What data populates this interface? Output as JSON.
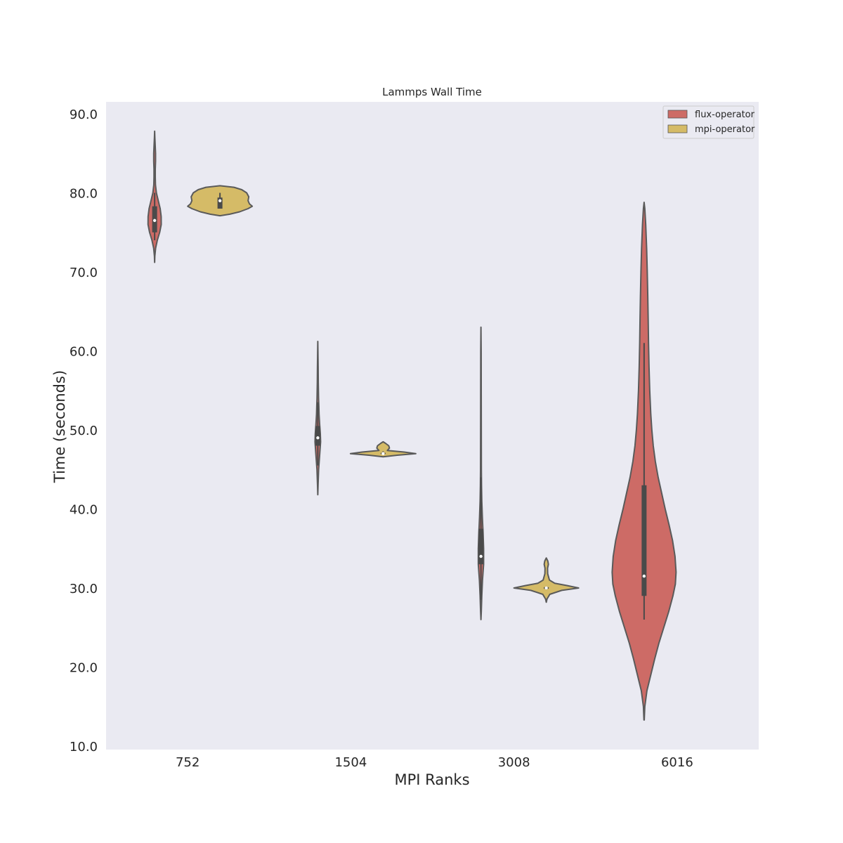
{
  "chart_data": {
    "type": "violin",
    "title": "Lammps Wall Time",
    "xlabel": "MPI Ranks",
    "ylabel": "Time (seconds)",
    "categories": [
      "752",
      "1504",
      "3008",
      "6016"
    ],
    "ylim": [
      10.0,
      91.5
    ],
    "yticks": [
      "10.0",
      "20.0",
      "30.0",
      "40.0",
      "50.0",
      "60.0",
      "70.0",
      "80.0",
      "90.0"
    ],
    "grid": false,
    "legend_position": "top-right",
    "background": "#EAEAF2",
    "series": [
      {
        "name": "flux-operator",
        "color": "#CD6B66",
        "distributions": [
          {
            "category": "752",
            "median": 76.5,
            "q1": 75.0,
            "q3": 78.3,
            "whisker_low": 74.0,
            "whisker_high": 80.0,
            "profile": [
              [
                71.2,
                0.0
              ],
              [
                72.0,
                0.3
              ],
              [
                73.0,
                1.4
              ],
              [
                74.0,
                3.8
              ],
              [
                75.0,
                7.2
              ],
              [
                76.0,
                9.4
              ],
              [
                77.0,
                9.3
              ],
              [
                78.0,
                7.9
              ],
              [
                79.0,
                5.2
              ],
              [
                80.0,
                2.5
              ],
              [
                81.0,
                1.2
              ],
              [
                82.0,
                0.9
              ],
              [
                83.0,
                0.9
              ],
              [
                84.0,
                1.3
              ],
              [
                85.0,
                1.3
              ],
              [
                86.0,
                0.8
              ],
              [
                87.0,
                0.3
              ],
              [
                87.8,
                0.0
              ]
            ]
          },
          {
            "category": "1504",
            "median": 49.0,
            "q1": 48.0,
            "q3": 50.5,
            "whisker_low": 45.5,
            "whisker_high": 53.5,
            "profile": [
              [
                41.8,
                0.0
              ],
              [
                43.0,
                0.4
              ],
              [
                45.0,
                1.2
              ],
              [
                47.0,
                2.8
              ],
              [
                48.5,
                4.0
              ],
              [
                49.5,
                3.6
              ],
              [
                50.5,
                2.8
              ],
              [
                52.0,
                1.8
              ],
              [
                53.0,
                1.5
              ],
              [
                54.0,
                1.1
              ],
              [
                56.0,
                0.7
              ],
              [
                58.0,
                0.5
              ],
              [
                61.2,
                0.0
              ]
            ]
          },
          {
            "category": "3008",
            "median": 34.0,
            "q1": 33.0,
            "q3": 37.5,
            "whisker_low": 28.5,
            "whisker_high": 44.0,
            "profile": [
              [
                26.0,
                0.0
              ],
              [
                27.0,
                0.5
              ],
              [
                29.0,
                1.2
              ],
              [
                31.0,
                2.2
              ],
              [
                33.0,
                3.8
              ],
              [
                35.0,
                3.8
              ],
              [
                37.0,
                3.0
              ],
              [
                39.0,
                2.0
              ],
              [
                41.0,
                1.2
              ],
              [
                43.0,
                0.8
              ],
              [
                45.0,
                0.6
              ],
              [
                50.0,
                0.5
              ],
              [
                55.0,
                0.4
              ],
              [
                60.0,
                0.3
              ],
              [
                63.0,
                0.0
              ]
            ]
          },
          {
            "category": "6016",
            "median": 31.5,
            "q1": 29.0,
            "q3": 43.0,
            "whisker_low": 26.0,
            "whisker_high": 61.0,
            "profile": [
              [
                13.3,
                0.2
              ],
              [
                15.0,
                1.0
              ],
              [
                17.0,
                4.0
              ],
              [
                19.0,
                9.5
              ],
              [
                21.0,
                15.0
              ],
              [
                23.0,
                21.0
              ],
              [
                25.0,
                28.0
              ],
              [
                27.0,
                35.0
              ],
              [
                29.0,
                41.0
              ],
              [
                30.5,
                44.5
              ],
              [
                32.0,
                45.5
              ],
              [
                34.0,
                44.0
              ],
              [
                36.0,
                40.5
              ],
              [
                38.0,
                35.5
              ],
              [
                40.0,
                30.0
              ],
              [
                42.0,
                25.0
              ],
              [
                44.0,
                20.0
              ],
              [
                46.0,
                16.0
              ],
              [
                48.0,
                13.0
              ],
              [
                50.0,
                11.0
              ],
              [
                52.0,
                9.5
              ],
              [
                55.0,
                8.0
              ],
              [
                58.0,
                7.0
              ],
              [
                61.0,
                6.3
              ],
              [
                64.0,
                5.8
              ],
              [
                67.0,
                5.2
              ],
              [
                70.0,
                4.5
              ],
              [
                73.0,
                3.6
              ],
              [
                76.0,
                2.3
              ],
              [
                78.0,
                1.0
              ],
              [
                78.8,
                0.0
              ]
            ]
          }
        ]
      },
      {
        "name": "mpi-operator",
        "color": "#D5BB67",
        "distributions": [
          {
            "category": "752",
            "median": 79.0,
            "q1": 78.0,
            "q3": 79.4,
            "whisker_low": 78.0,
            "whisker_high": 80.0,
            "profile": [
              [
                77.1,
                0.0
              ],
              [
                77.3,
                14.0
              ],
              [
                77.6,
                28.0
              ],
              [
                78.0,
                40.0
              ],
              [
                78.3,
                46.0
              ],
              [
                78.6,
                42.0
              ],
              [
                79.0,
                40.0
              ],
              [
                79.5,
                41.0
              ],
              [
                80.0,
                38.0
              ],
              [
                80.4,
                31.0
              ],
              [
                80.7,
                20.0
              ],
              [
                80.9,
                0.0
              ]
            ]
          },
          {
            "category": "1504",
            "median": 47.0,
            "q1": 46.95,
            "q3": 47.1,
            "whisker_low": 46.9,
            "whisker_high": 47.3,
            "profile": [
              [
                46.6,
                0.0
              ],
              [
                46.8,
                20.0
              ],
              [
                47.0,
                46.5
              ],
              [
                47.2,
                30.0
              ],
              [
                47.4,
                6.0
              ],
              [
                47.7,
                9.0
              ],
              [
                48.0,
                8.0
              ],
              [
                48.3,
                3.5
              ],
              [
                48.5,
                0.0
              ]
            ]
          },
          {
            "category": "3008",
            "median": 30.0,
            "q1": 29.9,
            "q3": 30.1,
            "whisker_low": 29.8,
            "whisker_high": 30.2,
            "profile": [
              [
                28.2,
                0.0
              ],
              [
                28.6,
                1.0
              ],
              [
                29.2,
                5.0
              ],
              [
                29.7,
                22.0
              ],
              [
                30.0,
                46.0
              ],
              [
                30.3,
                30.0
              ],
              [
                30.6,
                12.0
              ],
              [
                31.0,
                4.5
              ],
              [
                31.8,
                2.0
              ],
              [
                32.5,
                1.8
              ],
              [
                33.0,
                3.0
              ],
              [
                33.4,
                2.2
              ],
              [
                33.8,
                0.0
              ]
            ]
          }
        ]
      }
    ]
  }
}
